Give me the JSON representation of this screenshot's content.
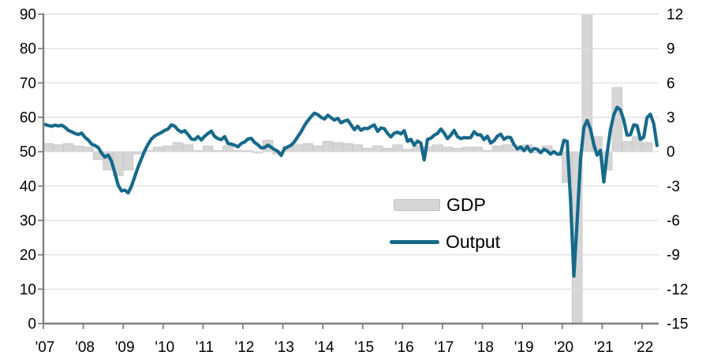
{
  "chart_data": {
    "type": "combo",
    "title": "",
    "background": "#ffffff",
    "x_tick_labels": [
      "'07",
      "'08",
      "'09",
      "'10",
      "'11",
      "'12",
      "'13",
      "'14",
      "'15",
      "'16",
      "'17",
      "'18",
      "'19",
      "'20",
      "'21",
      "'22"
    ],
    "left_axis": {
      "min": 0,
      "max": 90,
      "step": 10,
      "tick_labels": [
        "0",
        "10",
        "20",
        "30",
        "40",
        "50",
        "60",
        "70",
        "80",
        "90"
      ]
    },
    "right_axis": {
      "min": -15,
      "max": 12,
      "step": 3,
      "tick_labels": [
        "-15",
        "-12",
        "-9",
        "-6",
        "-3",
        "0",
        "3",
        "6",
        "9",
        "12"
      ]
    },
    "grid": true,
    "legend": {
      "position": "middle-right",
      "items": [
        {
          "label": "GDP",
          "swatch": "bar",
          "color": "#d6d6d6"
        },
        {
          "label": "Output",
          "swatch": "line",
          "color": "#17698a"
        }
      ]
    },
    "series": [
      {
        "name": "GDP",
        "type": "bar",
        "axis": "right",
        "frequency": "quarterly",
        "start": "2007-Q1",
        "color": "#d6d6d6",
        "border_color": "#c3c3c3",
        "values": [
          0.7,
          0.6,
          0.7,
          0.5,
          0.4,
          -0.7,
          -1.6,
          -2.1,
          -1.6,
          -0.2,
          0.1,
          0.4,
          0.5,
          0.8,
          0.6,
          0.1,
          0.5,
          0.1,
          0.5,
          0.1,
          0.1,
          -0.1,
          1.0,
          -0.2,
          0.5,
          0.6,
          0.7,
          0.5,
          0.9,
          0.8,
          0.7,
          0.6,
          0.3,
          0.5,
          0.3,
          0.6,
          0.2,
          0.5,
          0.4,
          0.6,
          0.4,
          0.3,
          0.4,
          0.4,
          0.1,
          0.5,
          0.6,
          0.2,
          0.6,
          -0.1,
          0.5,
          0.0,
          -2.7,
          -19.4,
          16.6,
          1.3,
          -1.6,
          5.6,
          0.9,
          1.3,
          0.8
        ]
      },
      {
        "name": "Output",
        "type": "line",
        "axis": "left",
        "frequency": "monthly",
        "start": "2007-01",
        "color": "#17698a",
        "values": [
          57.9,
          57.6,
          57.4,
          57.7,
          57.5,
          57.7,
          57.1,
          56.2,
          55.8,
          55.3,
          55.0,
          55.4,
          54.2,
          53.4,
          52.2,
          51.8,
          51.2,
          49.6,
          48.4,
          49.0,
          47.2,
          43.8,
          40.2,
          38.6,
          38.8,
          38.0,
          40.0,
          42.8,
          45.6,
          48.0,
          50.3,
          52.2,
          53.7,
          54.6,
          55.1,
          55.6,
          56.2,
          56.6,
          57.8,
          57.4,
          56.3,
          55.7,
          56.1,
          55.0,
          53.7,
          53.5,
          54.4,
          53.4,
          54.5,
          55.3,
          56.0,
          54.4,
          53.8,
          53.5,
          54.4,
          52.4,
          52.2,
          51.9,
          51.4,
          52.4,
          52.8,
          53.7,
          53.9,
          52.7,
          52.0,
          51.1,
          51.2,
          51.9,
          51.3,
          50.6,
          50.1,
          48.9,
          50.9,
          51.4,
          51.9,
          52.9,
          54.4,
          55.8,
          57.6,
          59.0,
          60.2,
          61.2,
          60.8,
          60.0,
          59.5,
          60.6,
          59.9,
          59.2,
          59.7,
          58.4,
          58.9,
          59.2,
          57.8,
          56.4,
          57.4,
          56.2,
          56.8,
          56.7,
          57.3,
          57.8,
          55.9,
          56.9,
          56.7,
          55.3,
          54.3,
          55.4,
          55.7,
          55.2,
          56.1,
          53.0,
          53.6,
          51.9,
          53.1,
          52.5,
          47.6,
          53.6,
          53.9,
          54.8,
          55.3,
          56.6,
          55.4,
          53.8,
          54.8,
          56.2,
          54.4,
          53.8,
          54.1,
          54.0,
          54.1,
          55.8,
          54.9,
          54.9,
          53.5,
          54.5,
          52.5,
          53.2,
          54.5,
          55.1,
          53.6,
          54.2,
          54.1,
          52.1,
          50.8,
          51.4,
          50.3,
          51.5,
          50.0,
          50.9,
          50.7,
          49.7,
          50.7,
          50.2,
          49.3,
          50.0,
          49.3,
          49.3,
          53.3,
          53.0,
          36.0,
          13.8,
          30.0,
          47.7,
          57.0,
          59.1,
          56.5,
          52.1,
          49.0,
          50.4,
          41.2,
          49.6,
          56.4,
          60.7,
          62.9,
          62.2,
          59.2,
          54.8,
          54.9,
          57.8,
          57.6,
          53.6,
          54.2,
          59.9,
          60.9,
          58.2,
          51.8
        ]
      }
    ],
    "axis_colors": {
      "axis_line": "#808080",
      "gridline": "#dcdcdc",
      "tick_label": "#000000"
    }
  }
}
